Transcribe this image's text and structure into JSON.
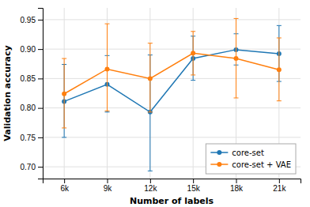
{
  "chart_data": {
    "type": "line",
    "xlabel": "Number of labels",
    "ylabel": "Validation accuracy",
    "categories": [
      "6k",
      "9k",
      "12k",
      "15k",
      "18k",
      "21k"
    ],
    "series": [
      {
        "name": "core-set",
        "color": "#1f77b4",
        "marker": "circle",
        "values": [
          0.811,
          0.84,
          0.793,
          0.884,
          0.899,
          0.892
        ],
        "error_lower": [
          0.061,
          0.047,
          0.1,
          0.037,
          0.026,
          0.047
        ],
        "error_upper": [
          0.063,
          0.049,
          0.097,
          0.038,
          0.027,
          0.048
        ]
      },
      {
        "name": "core-set + VAE",
        "color": "#ff7f0e",
        "marker": "circle",
        "values": [
          0.824,
          0.866,
          0.85,
          0.893,
          0.884,
          0.865
        ],
        "error_lower": [
          0.058,
          0.071,
          0.057,
          0.037,
          0.067,
          0.053
        ],
        "error_upper": [
          0.06,
          0.077,
          0.06,
          0.037,
          0.068,
          0.054
        ]
      }
    ],
    "ylim": [
      0.68,
      0.97
    ],
    "yticks": [
      {
        "value": 0.7,
        "label": "0.70"
      },
      0.75,
      {
        "value": 0.8,
        "label": "0.80"
      },
      0.85,
      {
        "value": 0.9,
        "label": "0.90"
      },
      0.95
    ],
    "grid": true,
    "legend": "lower right"
  }
}
